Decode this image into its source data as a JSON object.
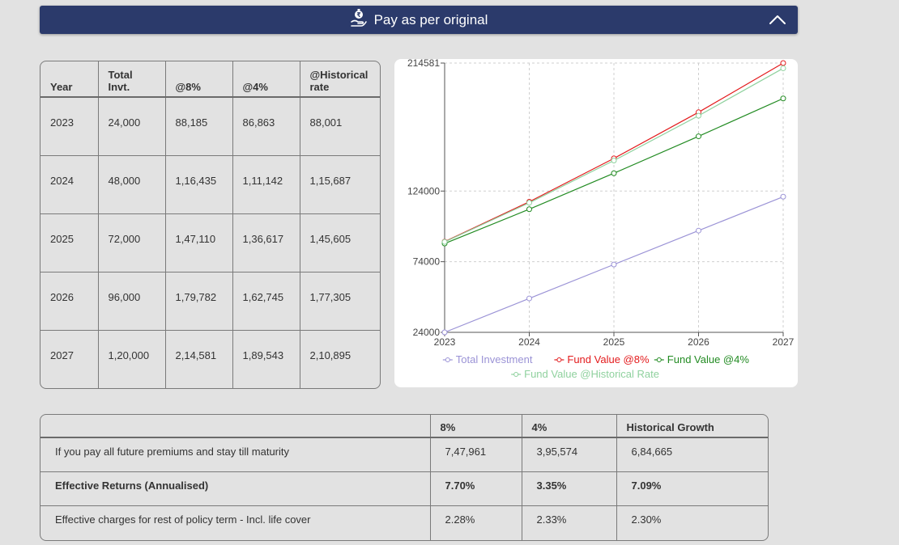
{
  "header": {
    "title": "Pay as per original",
    "bg_color": "#2b3a6b"
  },
  "year_table": {
    "columns": [
      "Year",
      "Total\nInvt.",
      "@8%",
      "@4%",
      "@Historical\nrate"
    ],
    "col_lines": [
      [
        "Year"
      ],
      [
        "Total",
        "Invt."
      ],
      [
        "@8%"
      ],
      [
        "@4%"
      ],
      [
        "@Historical",
        "rate"
      ]
    ],
    "rows": [
      [
        "2023",
        "24,000",
        "88,185",
        "86,863",
        "88,001"
      ],
      [
        "2024",
        "48,000",
        "1,16,435",
        "1,11,142",
        "1,15,687"
      ],
      [
        "2025",
        "72,000",
        "1,47,110",
        "1,36,617",
        "1,45,605"
      ],
      [
        "2026",
        "96,000",
        "1,79,782",
        "1,62,745",
        "1,77,305"
      ],
      [
        "2027",
        "1,20,000",
        "2,14,581",
        "1,89,543",
        "2,10,895"
      ]
    ]
  },
  "chart_data": {
    "type": "line",
    "x": [
      "2023",
      "2024",
      "2025",
      "2026",
      "2027"
    ],
    "yticks": [
      24000,
      74000,
      124000,
      214581
    ],
    "ylim": [
      24000,
      214581
    ],
    "grid": true,
    "legend_position": "bottom",
    "series": [
      {
        "name": "Total Investment",
        "color": "#9b93d6",
        "values": [
          24000,
          48000,
          72000,
          96000,
          120000
        ]
      },
      {
        "name": "Fund Value @8%",
        "color": "#e31a1c",
        "values": [
          88185,
          116435,
          147110,
          179782,
          214581
        ]
      },
      {
        "name": "Fund Value @4%",
        "color": "#228b22",
        "values": [
          86863,
          111142,
          136617,
          162745,
          189543
        ]
      },
      {
        "name": "Fund Value @Historical Rate",
        "color": "#8fd19e",
        "values": [
          88001,
          115687,
          145605,
          177305,
          210895
        ]
      }
    ]
  },
  "summary_table": {
    "headers": [
      "",
      "8%",
      "4%",
      "Historical Growth"
    ],
    "rows": [
      {
        "bold": false,
        "cells": [
          "If you pay all future premiums and stay till maturity",
          "7,47,961",
          "3,95,574",
          "6,84,665"
        ]
      },
      {
        "bold": true,
        "cells": [
          "Effective Returns (Annualised)",
          "7.70%",
          "3.35%",
          "7.09%"
        ]
      },
      {
        "bold": false,
        "cells": [
          "Effective charges for rest of policy term - Incl. life cover",
          "2.28%",
          "2.33%",
          "2.30%"
        ]
      }
    ]
  },
  "icons": {
    "header_icon": "money-hand-icon",
    "collapse_icon": "chevron-up-icon"
  }
}
